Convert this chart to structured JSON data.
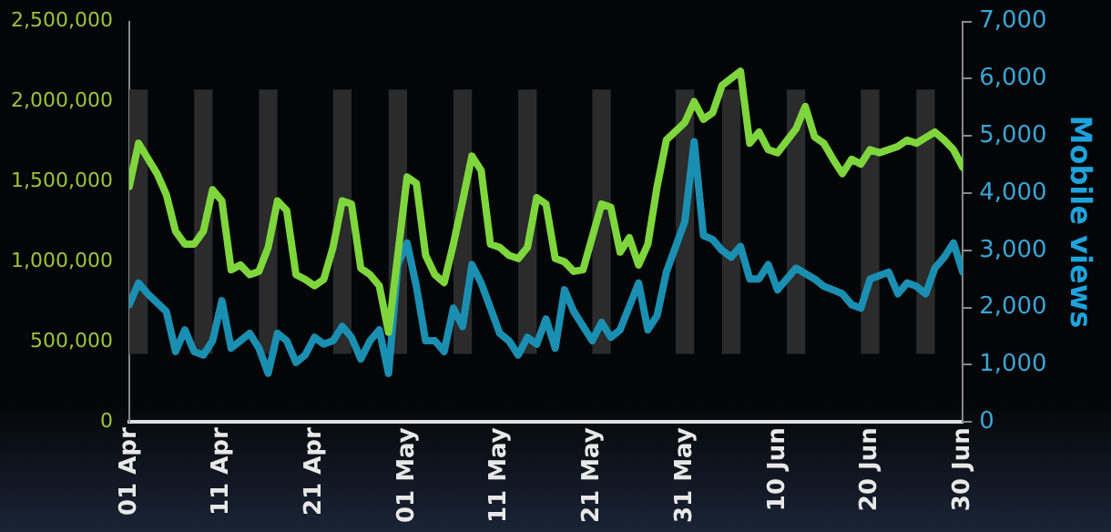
{
  "chart_data": {
    "type": "line",
    "y2label": "Mobile views",
    "xlim": [
      "--04-01",
      "--06-30"
    ],
    "xticks": [
      {
        "value": "--04-01",
        "label": "01 Apr"
      },
      {
        "value": "--04-11",
        "label": "11 Apr"
      },
      {
        "value": "--04-21",
        "label": "21 Apr"
      },
      {
        "value": "--05-01",
        "label": "01 May"
      },
      {
        "value": "--05-11",
        "label": "11 May"
      },
      {
        "value": "--05-21",
        "label": "21 May"
      },
      {
        "value": "--05-31",
        "label": "31 May"
      },
      {
        "value": "--06-10",
        "label": "10 Jun"
      },
      {
        "value": "--06-20",
        "label": "20 Jun"
      },
      {
        "value": "--06-30",
        "label": "30 Jun"
      }
    ],
    "ylim": [
      0,
      2500000
    ],
    "yticks": [
      {
        "value": 0,
        "label": "0"
      },
      {
        "value": 500000,
        "label": "500,000"
      },
      {
        "value": 1000000,
        "label": "1,000,000"
      },
      {
        "value": 1500000,
        "label": "1,500,000"
      },
      {
        "value": 2000000,
        "label": "2,000,000"
      },
      {
        "value": 2500000,
        "label": "2,500,000"
      }
    ],
    "y2lim": [
      0,
      7000
    ],
    "y2ticks": [
      {
        "value": 0,
        "label": "0"
      },
      {
        "value": 1000,
        "label": "1,000"
      },
      {
        "value": 2000,
        "label": "2,000"
      },
      {
        "value": 3000,
        "label": "3,000"
      },
      {
        "value": 4000,
        "label": "4,000"
      },
      {
        "value": 5000,
        "label": "5,000"
      },
      {
        "value": 6000,
        "label": "6,000"
      },
      {
        "value": 7000,
        "label": "7,000"
      }
    ],
    "grid": false,
    "legend": false,
    "bands": [
      {
        "axis": "x",
        "from": "--04-01",
        "to": "--04-03",
        "color": "#2b2b2b"
      },
      {
        "axis": "x",
        "from": "--04-08",
        "to": "--04-10",
        "color": "#2b2b2b"
      },
      {
        "axis": "x",
        "from": "--04-15",
        "to": "--04-17",
        "color": "#2b2b2b"
      },
      {
        "axis": "x",
        "from": "--04-23",
        "to": "--04-25",
        "color": "#2b2b2b"
      },
      {
        "axis": "x",
        "from": "--04-29",
        "to": "--05-01",
        "color": "#2b2b2b"
      },
      {
        "axis": "x",
        "from": "--05-06",
        "to": "--05-08",
        "color": "#2b2b2b"
      },
      {
        "axis": "x",
        "from": "--05-13",
        "to": "--05-15",
        "color": "#2b2b2b"
      },
      {
        "axis": "x",
        "from": "--05-21",
        "to": "--05-23",
        "color": "#2b2b2b"
      },
      {
        "axis": "x",
        "from": "--05-30",
        "to": "--06-01",
        "color": "#2b2b2b"
      },
      {
        "axis": "x",
        "from": "--06-04",
        "to": "--06-06",
        "color": "#2b2b2b"
      },
      {
        "axis": "x",
        "from": "--06-11",
        "to": "--06-13",
        "color": "#2b2b2b"
      },
      {
        "axis": "x",
        "from": "--06-19",
        "to": "--06-21",
        "color": "#2b2b2b"
      },
      {
        "axis": "x",
        "from": "--06-25",
        "to": "--06-27",
        "color": "#2b2b2b"
      }
    ],
    "series": [
      {
        "color": "#7ed63c",
        "axis": "y",
        "x": [
          "--04-01",
          "--04-02",
          "--04-04",
          "--04-05",
          "--04-06",
          "--04-07",
          "--04-08",
          "--04-09",
          "--04-10",
          "--04-11",
          "--04-12",
          "--04-13",
          "--04-14",
          "--04-15",
          "--04-16",
          "--04-17",
          "--04-18",
          "--04-19",
          "--04-20",
          "--04-21",
          "--04-22",
          "--04-23",
          "--04-24",
          "--04-25",
          "--04-26",
          "--04-27",
          "--04-28",
          "--04-29",
          "--05-01",
          "--05-02",
          "--05-03",
          "--05-04",
          "--05-05",
          "--05-06",
          "--05-07",
          "--05-08",
          "--05-09",
          "--05-10",
          "--05-11",
          "--05-12",
          "--05-13",
          "--05-14",
          "--05-15",
          "--05-16",
          "--05-17",
          "--05-18",
          "--05-19",
          "--05-20",
          "--05-22",
          "--05-23",
          "--05-24",
          "--05-25",
          "--05-26",
          "--05-27",
          "--05-28",
          "--05-29",
          "--05-31",
          "--06-01",
          "--06-02",
          "--06-03",
          "--06-04",
          "--06-06",
          "--06-07",
          "--06-08",
          "--06-09",
          "--06-10",
          "--06-12",
          "--06-13",
          "--06-14",
          "--06-15",
          "--06-16",
          "--06-17",
          "--06-18",
          "--06-19",
          "--06-20",
          "--06-21",
          "--06-22",
          "--06-23",
          "--06-24",
          "--06-25",
          "--06-27",
          "--06-28",
          "--06-29",
          "--06-30"
        ],
        "values": [
          1470000,
          1740000,
          1550000,
          1420000,
          1190000,
          1110000,
          1110000,
          1190000,
          1450000,
          1380000,
          950000,
          980000,
          920000,
          940000,
          1090000,
          1380000,
          1320000,
          920000,
          890000,
          850000,
          890000,
          1090000,
          1380000,
          1360000,
          960000,
          920000,
          850000,
          560000,
          1530000,
          1490000,
          1040000,
          920000,
          870000,
          1110000,
          1380000,
          1660000,
          1570000,
          1110000,
          1090000,
          1040000,
          1020000,
          1090000,
          1400000,
          1360000,
          1020000,
          1000000,
          940000,
          950000,
          1360000,
          1340000,
          1060000,
          1150000,
          980000,
          1110000,
          1470000,
          1760000,
          1870000,
          2000000,
          1890000,
          1930000,
          2100000,
          2190000,
          1740000,
          1810000,
          1700000,
          1680000,
          1830000,
          1970000,
          1780000,
          1740000,
          1640000,
          1550000,
          1640000,
          1610000,
          1700000,
          1680000,
          1700000,
          1720000,
          1760000,
          1740000,
          1810000,
          1760000,
          1700000,
          1590000
        ]
      },
      {
        "color": "#1a8fb2",
        "axis": "y2",
        "x": [
          "--04-01",
          "--04-02",
          "--04-03",
          "--04-05",
          "--04-06",
          "--04-07",
          "--04-08",
          "--04-09",
          "--04-10",
          "--04-11",
          "--04-12",
          "--04-13",
          "--04-14",
          "--04-15",
          "--04-16",
          "--04-17",
          "--04-18",
          "--04-19",
          "--04-20",
          "--04-21",
          "--04-22",
          "--04-23",
          "--04-24",
          "--04-25",
          "--04-26",
          "--04-27",
          "--04-28",
          "--04-29",
          "--04-30",
          "--05-01",
          "--05-02",
          "--05-03",
          "--05-04",
          "--05-05",
          "--05-06",
          "--05-07",
          "--05-08",
          "--05-09",
          "--05-10",
          "--05-11",
          "--05-12",
          "--05-13",
          "--05-14",
          "--05-15",
          "--05-16",
          "--05-17",
          "--05-18",
          "--05-19",
          "--05-21",
          "--05-22",
          "--05-23",
          "--05-24",
          "--05-26",
          "--05-27",
          "--05-28",
          "--05-29",
          "--05-31",
          "--06-01",
          "--06-02",
          "--06-03",
          "--06-04",
          "--06-05",
          "--06-06",
          "--06-07",
          "--06-08",
          "--06-09",
          "--06-10",
          "--06-11",
          "--06-12",
          "--06-14",
          "--06-15",
          "--06-16",
          "--06-17",
          "--06-18",
          "--06-19",
          "--06-20",
          "--06-21",
          "--06-22",
          "--06-23",
          "--06-24",
          "--06-25",
          "--06-26",
          "--06-27",
          "--06-28",
          "--06-29",
          "--06-30"
        ],
        "values": [
          2050,
          2430,
          2240,
          1930,
          1230,
          1610,
          1230,
          1170,
          1420,
          2120,
          1290,
          1420,
          1550,
          1290,
          850,
          1550,
          1420,
          1040,
          1170,
          1480,
          1360,
          1420,
          1670,
          1480,
          1100,
          1420,
          1610,
          850,
          2750,
          3130,
          2370,
          1420,
          1420,
          1230,
          1990,
          1670,
          2750,
          2430,
          1990,
          1550,
          1420,
          1170,
          1480,
          1360,
          1800,
          1290,
          2310,
          1930,
          1420,
          1740,
          1480,
          1610,
          2430,
          1610,
          1860,
          2620,
          3510,
          4900,
          3260,
          3190,
          3000,
          2880,
          3070,
          2500,
          2500,
          2750,
          2310,
          2500,
          2690,
          2500,
          2370,
          2310,
          2240,
          2050,
          1990,
          2500,
          2560,
          2620,
          2240,
          2430,
          2370,
          2240,
          2690,
          2880,
          3130,
          2620
        ]
      }
    ]
  }
}
